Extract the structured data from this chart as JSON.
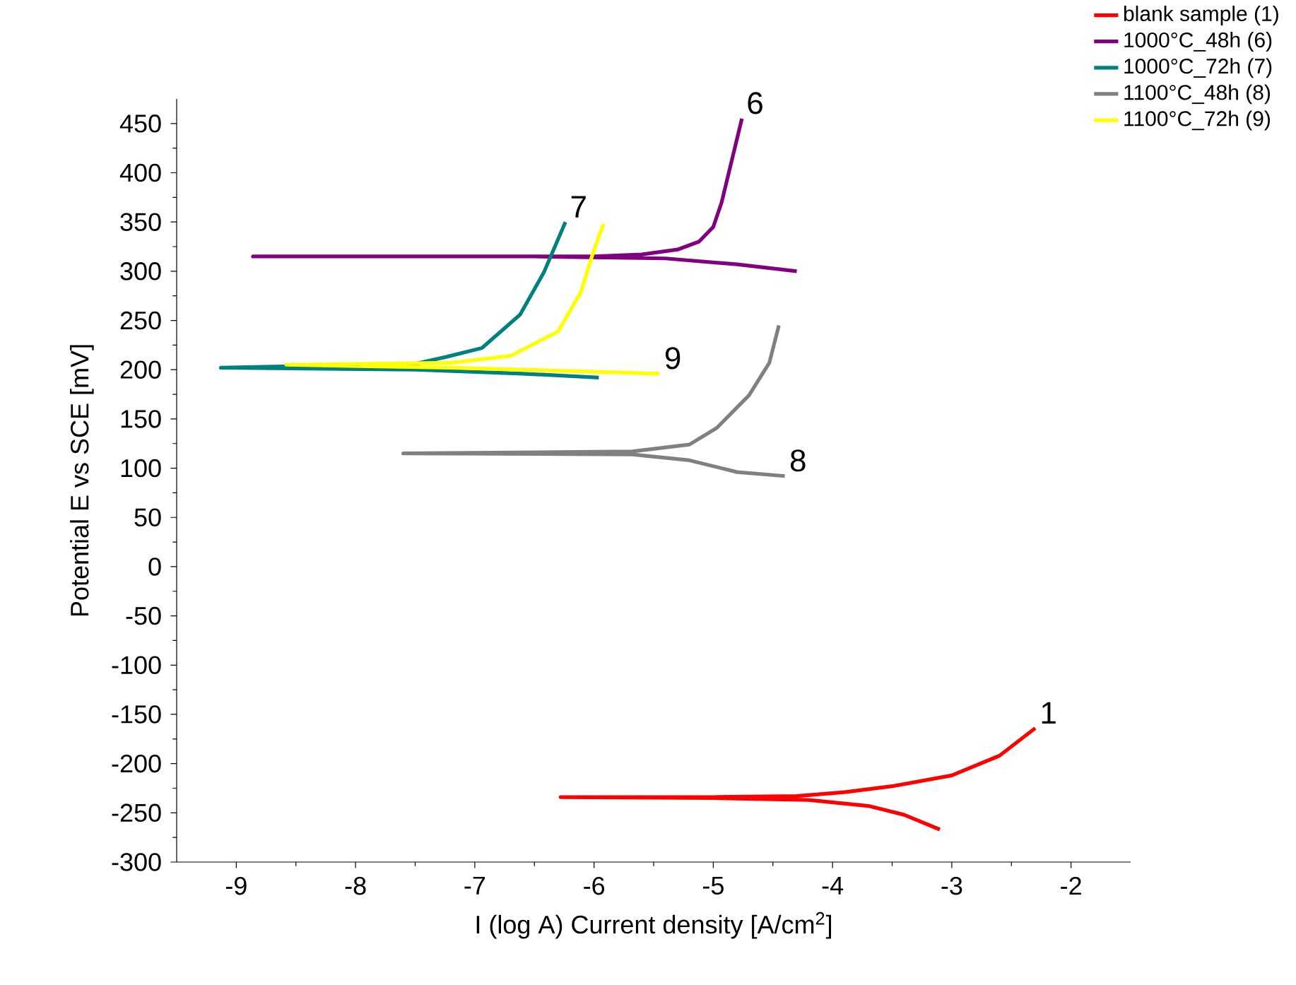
{
  "chart_data": {
    "type": "line",
    "xlabel": "I (log A) Current density [A/cm$^{2}$]",
    "ylabel": "Potential E vs SCE [mV]",
    "xlim": [
      -9.5,
      -1.5
    ],
    "xticks": [
      -9,
      -8,
      -7,
      -6,
      -5,
      -4,
      -3,
      -2
    ],
    "ylim": [
      -300,
      475
    ],
    "yticks": [
      -300,
      -250,
      -200,
      -150,
      -100,
      -50,
      0,
      50,
      100,
      150,
      200,
      250,
      300,
      350,
      400,
      450
    ],
    "grid": false,
    "legend": "top right",
    "marker": "none",
    "line_style": "solid",
    "series": [
      {
        "name": "blank sample (1)",
        "color": "#ff0000",
        "x": [
          -3.1,
          -3.4,
          -3.7,
          -4.2,
          -5.0,
          -6.28,
          -5.0,
          -4.3,
          -3.9,
          -3.5,
          -3.0,
          -2.6,
          -2.3
        ],
        "values": [
          -267,
          -252,
          -243,
          -237,
          -235,
          -234,
          -234,
          -233,
          -229,
          -223,
          -212,
          -192,
          -164
        ]
      },
      {
        "name": "1000°C_48h (6)",
        "color": "#800080",
        "x": [
          -4.3,
          -4.8,
          -5.4,
          -6.5,
          -8.86,
          -6.0,
          -5.6,
          -5.3,
          -5.12,
          -5.0,
          -4.93,
          -4.85,
          -4.76
        ],
        "values": [
          300,
          307,
          313,
          315,
          315,
          315,
          317,
          322,
          330,
          345,
          370,
          410,
          455
        ]
      },
      {
        "name": "1000°C_72h (7)",
        "color": "#008080",
        "x": [
          -5.96,
          -6.6,
          -7.5,
          -9.13,
          -7.5,
          -7.24,
          -6.94,
          -6.62,
          -6.42,
          -6.24
        ],
        "values": [
          192,
          196,
          200,
          202,
          206,
          213,
          222,
          256,
          299,
          350
        ]
      },
      {
        "name": "1100°C_48h (8)",
        "color": "#808080",
        "x": [
          -4.4,
          -4.8,
          -5.2,
          -5.68,
          -7.6,
          -5.68,
          -5.2,
          -4.97,
          -4.7,
          -4.53,
          -4.45
        ],
        "values": [
          92,
          96,
          108,
          114,
          115,
          117,
          124,
          141,
          174,
          207,
          245
        ]
      },
      {
        "name": "1100°C_72h (9)",
        "color": "#ffff00",
        "x": [
          -5.45,
          -6.3,
          -7.2,
          -8.58,
          -7.2,
          -6.7,
          -6.3,
          -6.11,
          -6.0,
          -5.92
        ],
        "values": [
          196,
          199,
          202,
          205,
          207,
          214,
          239,
          279,
          322,
          348
        ]
      }
    ],
    "annotations": [
      {
        "text": "1",
        "x": -2.3,
        "y": -164
      },
      {
        "text": "6",
        "x": -4.76,
        "y": 455
      },
      {
        "text": "7",
        "x": -6.24,
        "y": 350
      },
      {
        "text": "8",
        "x": -4.4,
        "y": 92
      },
      {
        "text": "9",
        "x": -5.45,
        "y": 196
      }
    ]
  }
}
